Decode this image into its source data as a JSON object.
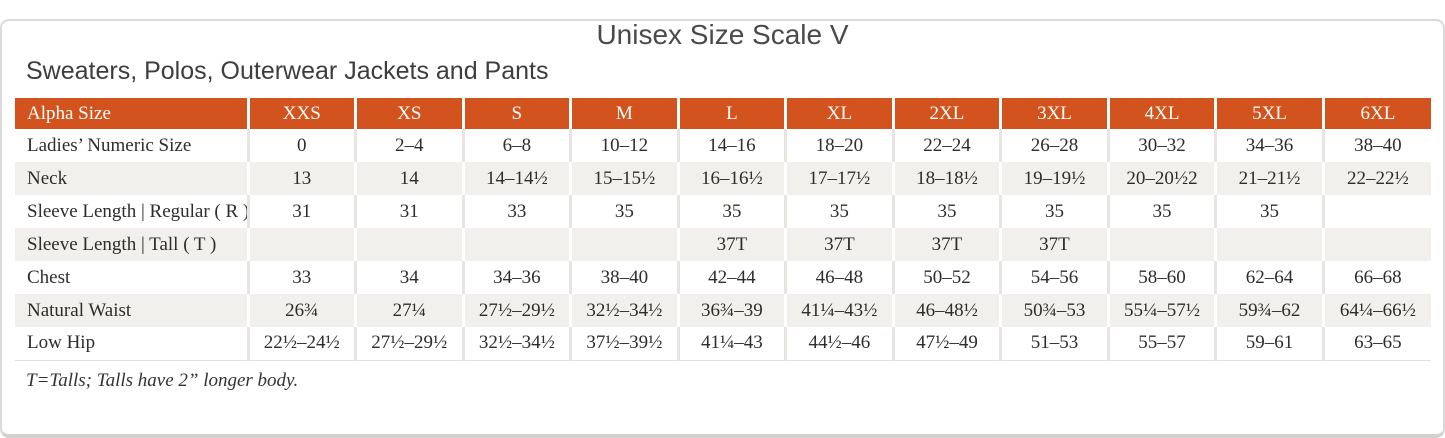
{
  "page": {
    "title": "Unisex Size Scale V",
    "subtitle": "Sweaters, Polos, Outerwear Jackets and Pants",
    "footnote": "T=Talls; Talls have 2” longer body."
  },
  "colors": {
    "header_bg": "#d2531e",
    "header_text": "#ffffff",
    "stripe_bg": "#f2f0ed",
    "body_text": "#2e2d2b",
    "frame_border": "#dadada"
  },
  "table": {
    "columns": [
      "Alpha Size",
      "XXS",
      "XS",
      "S",
      "M",
      "L",
      "XL",
      "2XL",
      "3XL",
      "4XL",
      "5XL",
      "6XL"
    ],
    "rows": [
      {
        "label": "Ladies’ Numeric Size",
        "values": [
          "0",
          "2–4",
          "6–8",
          "10–12",
          "14–16",
          "18–20",
          "22–24",
          "26–28",
          "30–32",
          "34–36",
          "38–40"
        ]
      },
      {
        "label": "Neck",
        "values": [
          "13",
          "14",
          "14–14½",
          "15–15½",
          "16–16½",
          "17–17½",
          "18–18½",
          "19–19½",
          "20–20½2",
          "21–21½",
          "22–22½"
        ]
      },
      {
        "label": "Sleeve Length | Regular ( R )",
        "values": [
          "31",
          "31",
          "33",
          "35",
          "35",
          "35",
          "35",
          "35",
          "35",
          "35",
          ""
        ]
      },
      {
        "label": "Sleeve Length | Tall ( T )",
        "values": [
          "",
          "",
          "",
          "",
          "37T",
          "37T",
          "37T",
          "37T",
          "",
          "",
          ""
        ]
      },
      {
        "label": "Chest",
        "values": [
          "33",
          "34",
          "34–36",
          "38–40",
          "42–44",
          "46–48",
          "50–52",
          "54–56",
          "58–60",
          "62–64",
          "66–68"
        ]
      },
      {
        "label": "Natural Waist",
        "values": [
          "26¾",
          "27¼",
          "27½–29½",
          "32½–34½",
          "36¾–39",
          "41¼–43½",
          "46–48½",
          "50¾–53",
          "55¼–57½",
          "59¾–62",
          "64¼–66½"
        ]
      },
      {
        "label": "Low Hip",
        "values": [
          "22½–24½",
          "27½–29½",
          "32½–34½",
          "37½–39½",
          "41¼–43",
          "44½–46",
          "47½–49",
          "51–53",
          "55–57",
          "59–61",
          "63–65"
        ]
      }
    ]
  }
}
